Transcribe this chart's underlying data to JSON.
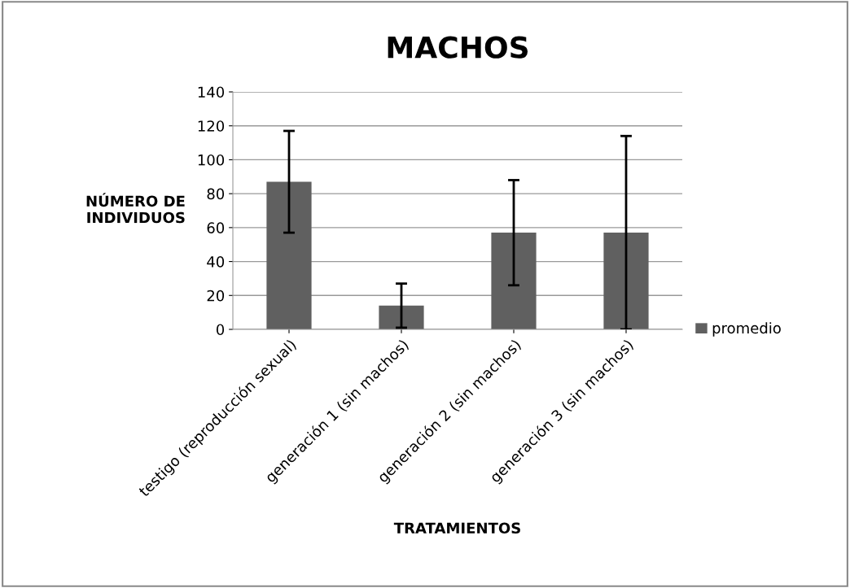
{
  "chart_data": {
    "type": "bar",
    "title": "MACHOS",
    "xlabel": "TRATAMIENTOS",
    "ylabel": "NÚMERO DE\nINDIVIDUOS",
    "categories": [
      "testigo (reproducción sexual)",
      "generación 1 (sin machos)",
      "generación 2 (sin machos)",
      "generación 3 (sin machos)"
    ],
    "series": [
      {
        "name": "promedio",
        "color": "#606060",
        "values": [
          87,
          14,
          57,
          57
        ],
        "errors": [
          30,
          13,
          31,
          57
        ]
      }
    ],
    "ylim": [
      0,
      140
    ],
    "yticks": [
      0,
      20,
      40,
      60,
      80,
      100,
      120,
      140
    ],
    "grid": "y",
    "legend": "right"
  }
}
